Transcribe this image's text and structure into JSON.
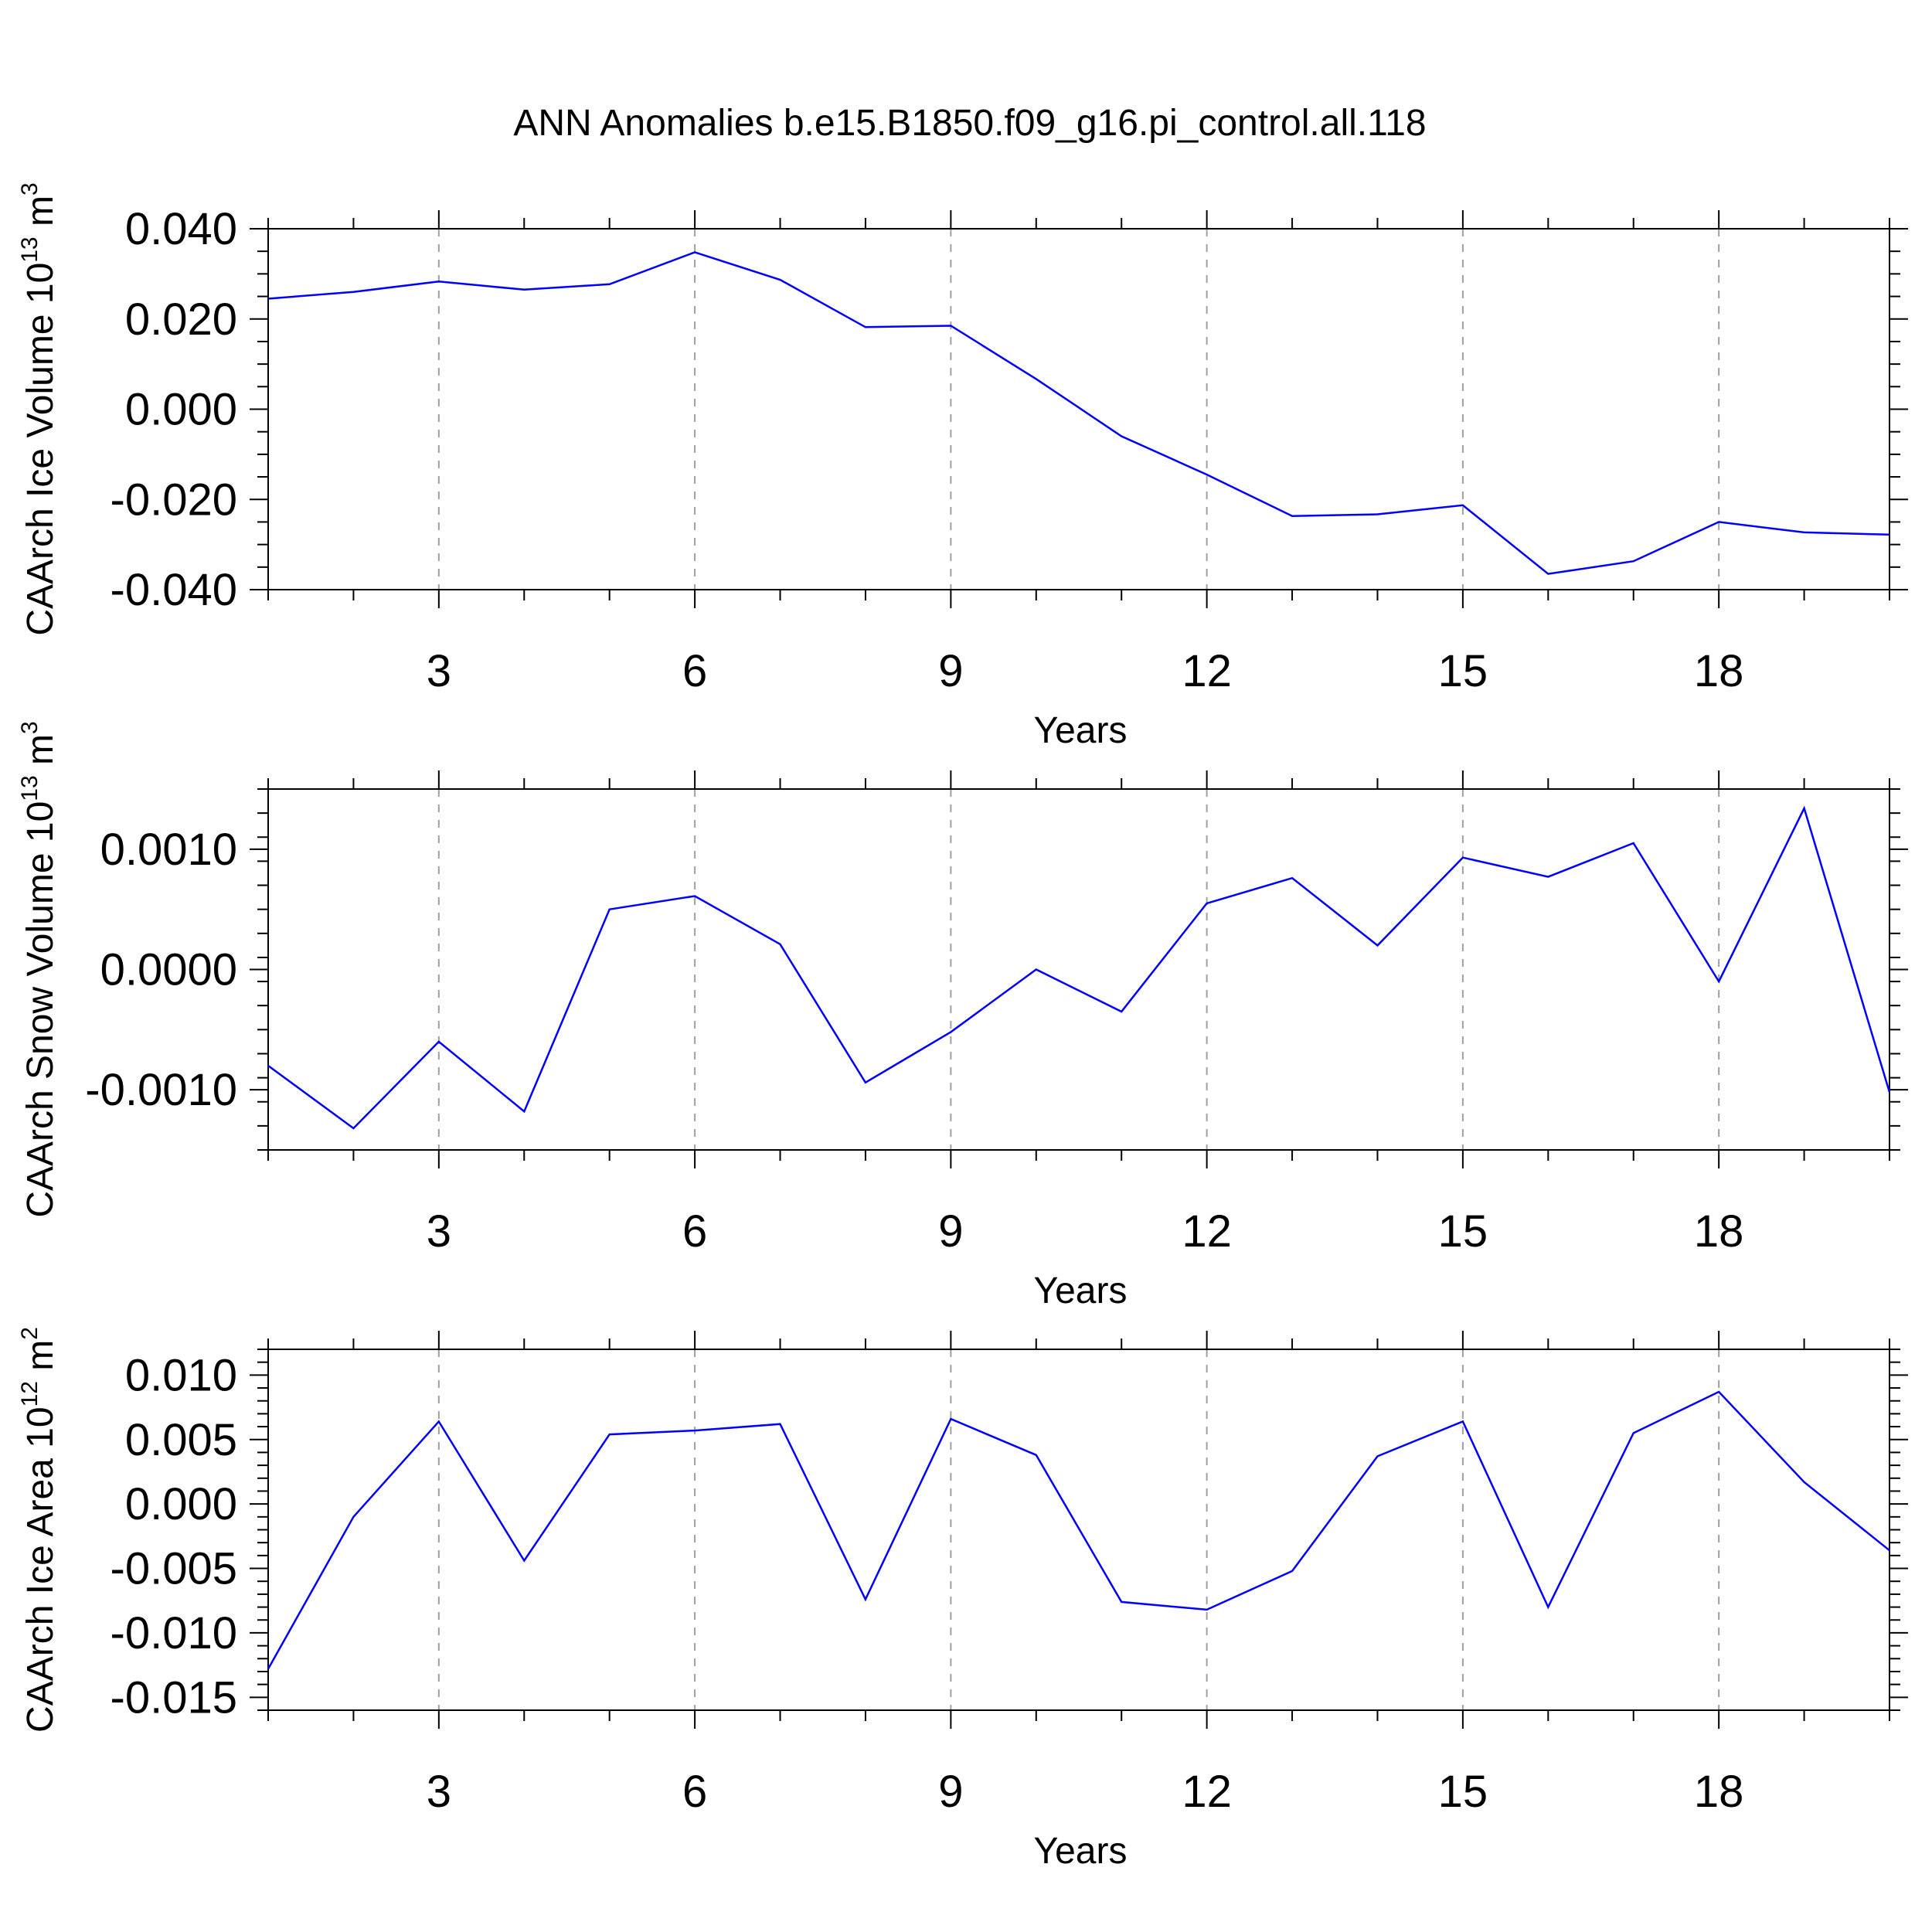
{
  "title": "ANN Anomalies b.e15.B1850.f09_g16.pi_control.all.118",
  "colors": {
    "line": "#0000ff",
    "axis": "#000000",
    "grid": "#a0a0a0"
  },
  "chart_data": [
    {
      "type": "line",
      "title": "ANN Anomalies b.e15.B1850.f09_g16.pi_control.all.118",
      "xlabel": "Years",
      "ylabel": {
        "text": "CAArch Ice Volume 10",
        "exp": "13",
        "unit": " m",
        "unit_exp": "3"
      },
      "xlim": [
        1,
        20
      ],
      "ylim": [
        -0.04,
        0.04
      ],
      "x_ticks": [
        "3",
        "6",
        "9",
        "12",
        "15",
        "18"
      ],
      "x_tick_values": [
        3,
        6,
        9,
        12,
        15,
        18
      ],
      "y_ticks": [
        "0.040",
        "0.020",
        "0.000",
        "-0.020",
        "-0.040"
      ],
      "y_tick_values": [
        0.04,
        0.02,
        0.0,
        -0.02,
        -0.04
      ],
      "y_minor_step": 0.005,
      "grid": "vertical dashed at major x ticks",
      "x": [
        1,
        2,
        3,
        4,
        5,
        6,
        7,
        8,
        9,
        10,
        11,
        12,
        13,
        14,
        15,
        16,
        17,
        18,
        19,
        20
      ],
      "values": [
        0.0245,
        0.026,
        0.0283,
        0.0265,
        0.0277,
        0.0348,
        0.0287,
        0.0182,
        0.0185,
        0.0067,
        -0.006,
        -0.0145,
        -0.0237,
        -0.0233,
        -0.0213,
        -0.0365,
        -0.0337,
        -0.025,
        -0.0273,
        -0.0278
      ]
    },
    {
      "type": "line",
      "xlabel": "Years",
      "ylabel": {
        "text": "CAArch Snow Volume 10",
        "exp": "13",
        "unit": " m",
        "unit_exp": "3"
      },
      "xlim": [
        1,
        20
      ],
      "ylim": [
        -0.0015,
        0.0015
      ],
      "x_ticks": [
        "3",
        "6",
        "9",
        "12",
        "15",
        "18"
      ],
      "x_tick_values": [
        3,
        6,
        9,
        12,
        15,
        18
      ],
      "y_ticks": [
        "0.0010",
        "0.0000",
        "-0.0010"
      ],
      "y_tick_values": [
        0.001,
        0.0,
        -0.001
      ],
      "y_minor_step": 0.0002,
      "grid": "vertical dashed at major x ticks",
      "x": [
        1,
        2,
        3,
        4,
        5,
        6,
        7,
        8,
        9,
        10,
        11,
        12,
        13,
        14,
        15,
        16,
        17,
        18,
        19,
        20
      ],
      "values": [
        -0.0008,
        -0.00132,
        -0.0006,
        -0.00118,
        0.0005,
        0.00061,
        0.00021,
        -0.00094,
        -0.00052,
        0.0,
        -0.00035,
        0.00055,
        0.00076,
        0.0002,
        0.00093,
        0.00077,
        0.00105,
        -0.0001,
        0.00134,
        -0.00102
      ]
    },
    {
      "type": "line",
      "xlabel": "Years",
      "ylabel": {
        "text": "CAArch Ice Area 10",
        "exp": "12",
        "unit": " m",
        "unit_exp": "2"
      },
      "xlim": [
        1,
        20
      ],
      "ylim": [
        -0.016,
        0.012
      ],
      "x_ticks": [
        "3",
        "6",
        "9",
        "12",
        "15",
        "18"
      ],
      "x_tick_values": [
        3,
        6,
        9,
        12,
        15,
        18
      ],
      "y_ticks": [
        "0.010",
        "0.005",
        "0.000",
        "-0.005",
        "-0.010",
        "-0.015"
      ],
      "y_tick_values": [
        0.01,
        0.005,
        0.0,
        -0.005,
        -0.01,
        -0.015
      ],
      "y_minor_step": 0.001,
      "grid": "vertical dashed at major x ticks",
      "x": [
        1,
        2,
        3,
        4,
        5,
        6,
        7,
        8,
        9,
        10,
        11,
        12,
        13,
        14,
        15,
        16,
        17,
        18,
        19,
        20
      ],
      "values": [
        -0.0128,
        -0.001,
        0.0064,
        -0.0044,
        0.0054,
        0.0057,
        0.0062,
        -0.0074,
        0.0066,
        0.0038,
        -0.0076,
        -0.0082,
        -0.0052,
        0.0037,
        0.0064,
        -0.008,
        0.0055,
        0.0087,
        0.0017,
        -0.0036
      ]
    }
  ]
}
